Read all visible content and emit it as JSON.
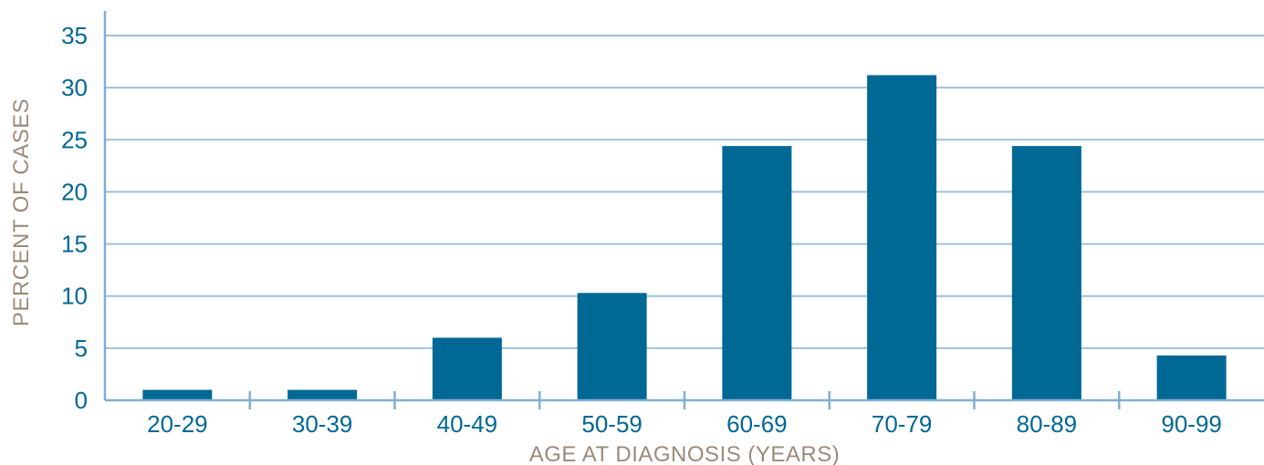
{
  "chart_data": {
    "type": "bar",
    "title": "",
    "xlabel": "AGE AT DIAGNOSIS (YEARS)",
    "ylabel": "PERCENT OF CASES",
    "categories": [
      "20-29",
      "30-39",
      "40-49",
      "50-59",
      "60-69",
      "70-79",
      "80-89",
      "90-99"
    ],
    "values": [
      1,
      1,
      6,
      10.3,
      24.4,
      31.2,
      24.4,
      4.3
    ],
    "ylim": [
      0,
      35
    ],
    "yticks": [
      "0",
      "5",
      "10",
      "15",
      "20",
      "25",
      "30",
      "35"
    ],
    "grid": true,
    "legend": "none"
  },
  "colors": {
    "bar": "#006894",
    "grid": "#9fc0da",
    "axis": "#7fb0d1",
    "tick_text": "#006894",
    "axis_title": "#9b8a79"
  }
}
